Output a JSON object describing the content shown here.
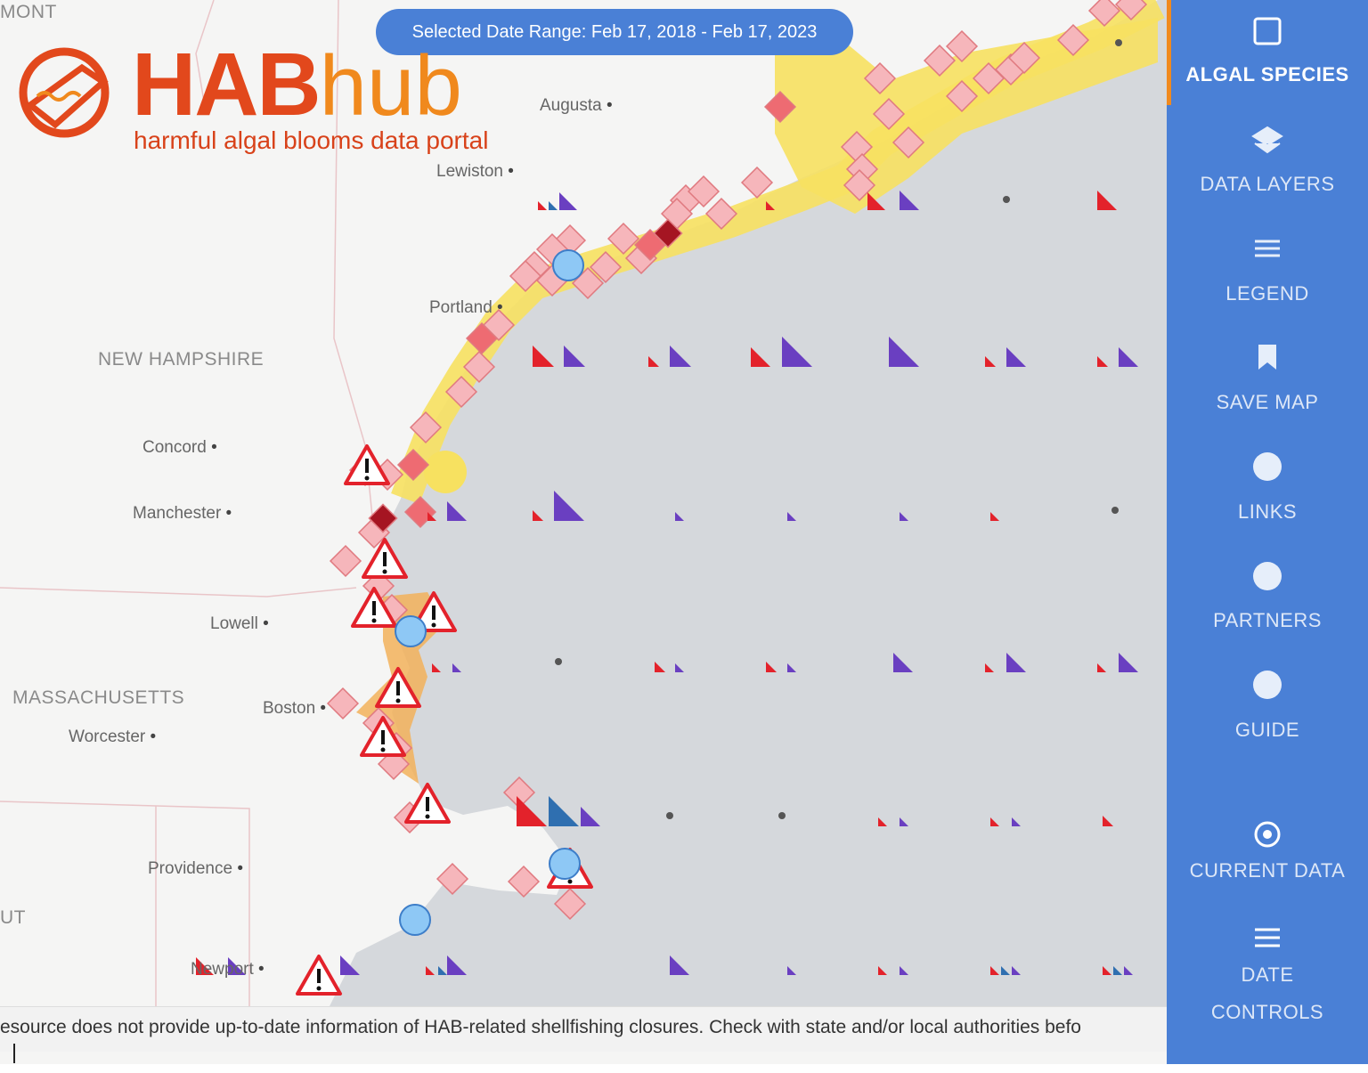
{
  "header": {
    "date_range": "Selected Date Range: Feb 17, 2018 - Feb 17, 2023",
    "logo_part1": "HAB",
    "logo_part2": "hub",
    "logo_subtitle": "harmful algal blooms data portal"
  },
  "map": {
    "states": [
      "NEW HAMPSHIRE",
      "MASSACHUSETTS",
      "MONT",
      "UT"
    ],
    "cities": [
      "Augusta",
      "Lewiston",
      "Portland",
      "Concord",
      "Manchester",
      "Lowell",
      "Boston",
      "Worcester",
      "Providence",
      "Newport"
    ]
  },
  "sidebar": {
    "items": [
      "ALGAL SPECIES",
      "DATA LAYERS",
      "LEGEND",
      "SAVE MAP",
      "LINKS",
      "PARTNERS",
      "GUIDE",
      "CURRENT DATA",
      "DATE",
      "CONTROLS"
    ]
  },
  "footer": {
    "disclaimer": "esource does not provide up-to-date information of HAB-related shellfishing closures. Check with state and/or local authorities befo"
  }
}
